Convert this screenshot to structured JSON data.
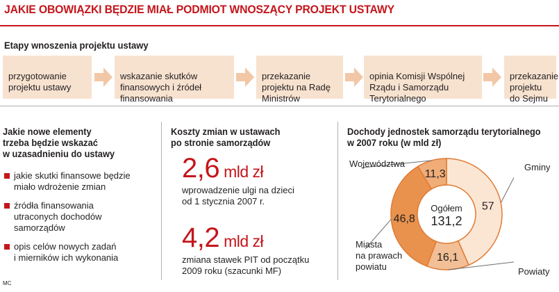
{
  "header": {
    "title": "JAKIE OBOWIĄZKI BĘDZIE MIAŁ PODMIOT WNOSZĄCY PROJEKT USTAWY"
  },
  "stages": {
    "title": "Etapy wnoszenia projektu ustawy",
    "items": [
      "przygotowanie\nprojektu ustawy",
      "wskazanie skutków\nfinansowych i źródeł\nfinansowania",
      "przekazanie\nprojektu na Radę\nMinistrów",
      "opinia Komisji Wspólnej\nRządu i Samorządu\nTerytorialnego",
      "przekazanie\nprojektu\ndo Sejmu"
    ]
  },
  "elements": {
    "title": "Jakie nowe elementy\ntrzeba będzie wskazać\nw uzasadnieniu do ustawy",
    "items": [
      "jakie skutki finansowe będzie\nmiało wdrożenie zmian",
      "źródła finansowania\nutraconych dochodów\nsamorządów",
      "opis celów nowych zadań\ni mierników ich wykonania"
    ]
  },
  "costs": {
    "title": "Koszty zmian w ustawach\npo stronie samorządów",
    "items": [
      {
        "value": "2,6",
        "unit": "mld zł",
        "desc": "wprowadzenie ulgi na dzieci\nod 1 stycznia 2007 r."
      },
      {
        "value": "4,2",
        "unit": "mld zł",
        "desc": "zmiana stawek PIT od początku\n2009 roku (szacunki MF)"
      }
    ]
  },
  "footer": {
    "credit": "MC"
  },
  "colors": {
    "accent": "#c4161c",
    "stage_bg": "#f7e2cf",
    "arrow": "#f2c7a6",
    "donut": [
      "#fbe6d4",
      "#f2bf96",
      "#e8924e",
      "#f0ad78"
    ]
  },
  "chart_data": {
    "type": "pie",
    "donut": true,
    "title": "Dochody jednostek samorządu terytorialnego\nw 2007 roku (w mld zł)",
    "center_label": "Ogółem",
    "center_value": "131,2",
    "total": 131.2,
    "slices": [
      {
        "name": "Gminy",
        "value": 57,
        "label": "57"
      },
      {
        "name": "Powiaty",
        "value": 16.1,
        "label": "16,1"
      },
      {
        "name": "Miasta\nna prawach\npowiatu",
        "value": 46.8,
        "label": "46,8"
      },
      {
        "name": "Województwa",
        "value": 11.3,
        "label": "11,3"
      }
    ]
  }
}
